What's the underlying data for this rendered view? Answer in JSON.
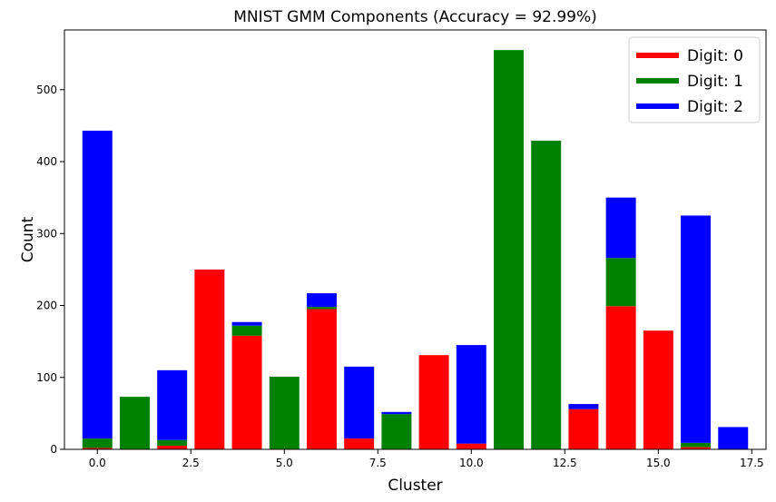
{
  "chart_data": {
    "type": "bar",
    "stacked": true,
    "title": "MNIST GMM Components (Accuracy = 92.99%)",
    "xlabel": "Cluster",
    "ylabel": "Count",
    "xlim": [
      -0.88,
      17.88
    ],
    "ylim": [
      0,
      583
    ],
    "xticks": [
      0.0,
      2.5,
      5.0,
      7.5,
      10.0,
      12.5,
      15.0,
      17.5
    ],
    "xtick_labels": [
      "0.0",
      "2.5",
      "5.0",
      "7.5",
      "10.0",
      "12.5",
      "15.0",
      "17.5"
    ],
    "yticks": [
      0,
      100,
      200,
      300,
      400,
      500
    ],
    "ytick_labels": [
      "0",
      "100",
      "200",
      "300",
      "400",
      "500"
    ],
    "grid": false,
    "legend_position": "top-right",
    "x": [
      0,
      1,
      2,
      3,
      4,
      5,
      6,
      7,
      8,
      9,
      10,
      11,
      12,
      13,
      14,
      15,
      16,
      17
    ],
    "series": [
      {
        "name": "Digit: 0",
        "color": "#ff0000",
        "values": [
          2,
          0,
          5,
          250,
          158,
          0,
          195,
          15,
          0,
          131,
          8,
          0,
          0,
          56,
          199,
          165,
          3,
          0
        ]
      },
      {
        "name": "Digit: 1",
        "color": "#008000",
        "values": [
          13,
          73,
          8,
          0,
          14,
          101,
          3,
          0,
          49,
          0,
          0,
          555,
          429,
          0,
          67,
          0,
          6,
          0
        ]
      },
      {
        "name": "Digit: 2",
        "color": "#0000ff",
        "values": [
          428,
          0,
          97,
          0,
          5,
          0,
          19,
          100,
          3,
          0,
          137,
          0,
          0,
          7,
          84,
          0,
          316,
          31
        ]
      }
    ]
  }
}
